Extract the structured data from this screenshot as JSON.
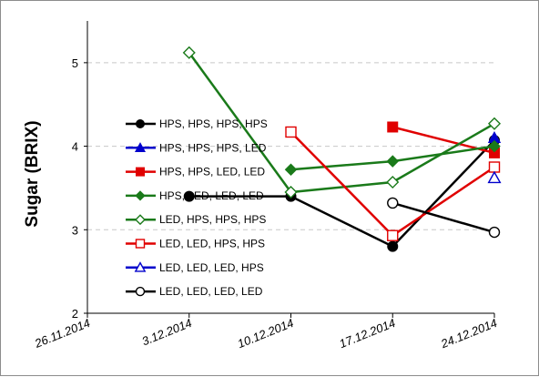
{
  "chart_data": {
    "type": "line",
    "ylabel": "Sugar (BRIX)",
    "xlabel": "",
    "title": "",
    "x": [
      "26.11.2014",
      "3.12.2014",
      "10.12.2014",
      "17.12.2014",
      "24.12.2014"
    ],
    "xlim": [
      "26.11.2014",
      "24.12.2014"
    ],
    "ylim": [
      2,
      5.5
    ],
    "yticks": [
      2,
      3,
      4,
      5
    ],
    "grid": "horizontal-dashed",
    "legend_position": "center-left",
    "series": [
      {
        "name": "HPS, HPS, HPS, HPS",
        "color": "#000000",
        "marker": "circle-filled",
        "values": [
          null,
          3.4,
          3.4,
          2.8,
          4.07
        ]
      },
      {
        "name": "HPS, HPS, HPS, LED",
        "color": "#0000cc",
        "marker": "triangle-filled",
        "values": [
          null,
          null,
          null,
          null,
          4.1
        ]
      },
      {
        "name": "HPS, HPS, LED, LED",
        "color": "#e00000",
        "marker": "square-filled",
        "values": [
          null,
          null,
          null,
          4.23,
          3.92
        ]
      },
      {
        "name": "HPS, LED, LED, LED",
        "color": "#1a7a1a",
        "marker": "diamond-filled",
        "values": [
          null,
          null,
          3.72,
          3.82,
          4.0
        ]
      },
      {
        "name": "LED, HPS, HPS, HPS",
        "color": "#1a7a1a",
        "marker": "diamond-open",
        "values": [
          null,
          5.12,
          3.45,
          3.57,
          4.27
        ]
      },
      {
        "name": "LED, LED, HPS, HPS",
        "color": "#e00000",
        "marker": "square-open",
        "values": [
          null,
          null,
          4.17,
          2.93,
          3.75
        ]
      },
      {
        "name": "LED, LED, LED, HPS",
        "color": "#0000cc",
        "marker": "triangle-open",
        "values": [
          null,
          null,
          null,
          null,
          3.62
        ]
      },
      {
        "name": "LED, LED, LED, LED",
        "color": "#000000",
        "marker": "circle-open",
        "values": [
          null,
          null,
          null,
          3.32,
          2.97
        ]
      }
    ]
  }
}
